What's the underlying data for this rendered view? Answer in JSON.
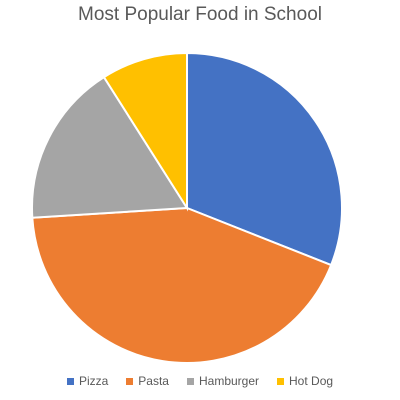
{
  "chart_data": {
    "type": "pie",
    "title": "Most Popular Food in School",
    "categories": [
      "Pizza",
      "Pasta",
      "Hamburger",
      "Hot Dog"
    ],
    "values": [
      31,
      43,
      17,
      9
    ],
    "colors": [
      "#4472C4",
      "#ED7D31",
      "#A5A5A5",
      "#FFC000"
    ],
    "legend_position": "bottom",
    "start_angle_deg": 0,
    "direction": "clockwise"
  }
}
